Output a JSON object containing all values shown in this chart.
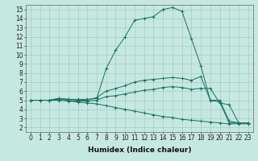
{
  "title": "",
  "xlabel": "Humidex (Indice chaleur)",
  "background_color": "#c5e8e0",
  "line_color": "#1a7060",
  "xlim": [
    -0.5,
    23.5
  ],
  "ylim": [
    1.5,
    15.5
  ],
  "xticks": [
    0,
    1,
    2,
    3,
    4,
    5,
    6,
    7,
    8,
    9,
    10,
    11,
    12,
    13,
    14,
    15,
    16,
    17,
    18,
    19,
    20,
    21,
    22,
    23
  ],
  "yticks": [
    2,
    3,
    4,
    5,
    6,
    7,
    8,
    9,
    10,
    11,
    12,
    13,
    14,
    15
  ],
  "lines": [
    {
      "x": [
        0,
        1,
        2,
        3,
        4,
        5,
        6,
        7,
        8,
        9,
        10,
        11,
        12,
        13,
        14,
        15,
        16,
        17,
        18,
        19,
        20,
        21,
        22,
        23
      ],
      "y": [
        5,
        5,
        5,
        5.2,
        5.1,
        5.1,
        5.1,
        5.2,
        8.5,
        10.5,
        12.0,
        13.8,
        14.0,
        14.2,
        15.0,
        15.2,
        14.8,
        11.8,
        8.8,
        5.0,
        5.0,
        2.7,
        2.5,
        2.5
      ]
    },
    {
      "x": [
        0,
        1,
        2,
        3,
        4,
        5,
        6,
        7,
        8,
        9,
        10,
        11,
        12,
        13,
        14,
        15,
        16,
        17,
        18,
        19,
        20,
        21,
        22,
        23
      ],
      "y": [
        5,
        5,
        5,
        5.2,
        5.1,
        5.0,
        5.0,
        5.3,
        6.0,
        6.3,
        6.6,
        7.0,
        7.2,
        7.3,
        7.4,
        7.5,
        7.4,
        7.2,
        7.6,
        5.0,
        4.8,
        2.5,
        2.5,
        2.5
      ]
    },
    {
      "x": [
        0,
        1,
        2,
        3,
        4,
        5,
        6,
        7,
        8,
        9,
        10,
        11,
        12,
        13,
        14,
        15,
        16,
        17,
        18,
        19,
        20,
        21,
        22,
        23
      ],
      "y": [
        5,
        5,
        5,
        5.1,
        5.0,
        4.9,
        4.9,
        5.0,
        5.4,
        5.5,
        5.7,
        5.9,
        6.1,
        6.2,
        6.4,
        6.5,
        6.4,
        6.2,
        6.3,
        6.3,
        4.7,
        4.5,
        2.5,
        2.5
      ]
    },
    {
      "x": [
        0,
        1,
        2,
        3,
        4,
        5,
        6,
        7,
        8,
        9,
        10,
        11,
        12,
        13,
        14,
        15,
        16,
        17,
        18,
        19,
        20,
        21,
        22,
        23
      ],
      "y": [
        5,
        5,
        5,
        5.0,
        4.9,
        4.8,
        4.7,
        4.6,
        4.4,
        4.2,
        4.0,
        3.8,
        3.6,
        3.4,
        3.2,
        3.1,
        2.9,
        2.8,
        2.7,
        2.6,
        2.5,
        2.4,
        2.4,
        2.4
      ]
    }
  ],
  "grid_color": "#a8ccc4",
  "marker": "+",
  "tick_fontsize": 5.5,
  "xlabel_fontsize": 6.5
}
